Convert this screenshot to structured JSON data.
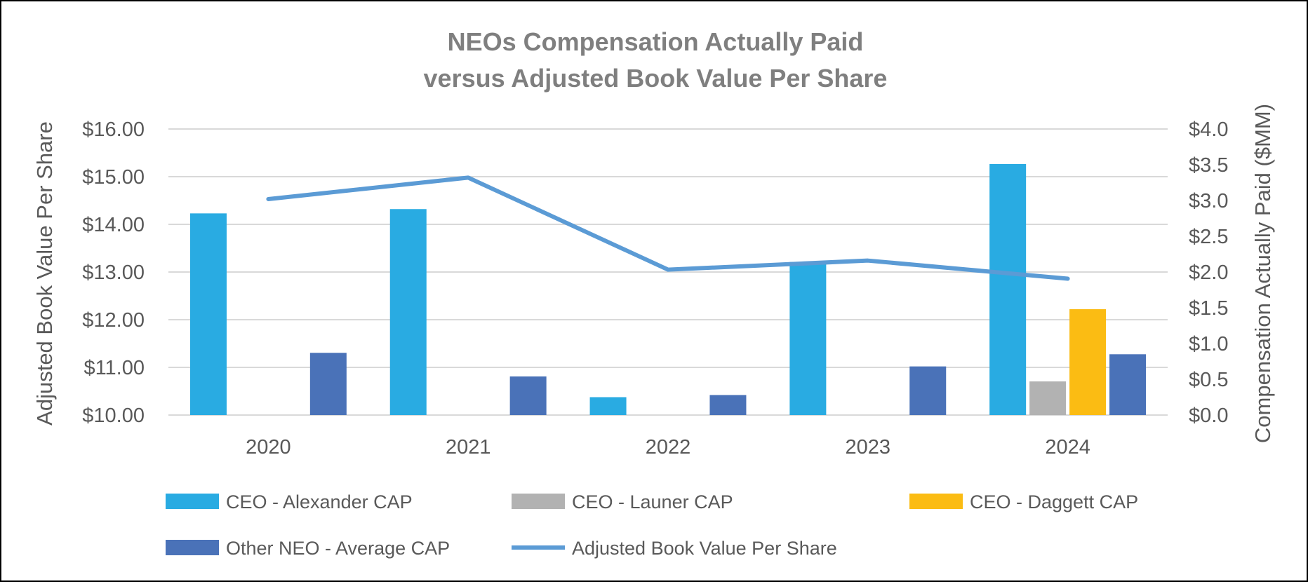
{
  "chart_data": {
    "type": "bar",
    "title": [
      "NEOs Compensation Actually Paid",
      "versus Adjusted Book Value Per Share"
    ],
    "categories": [
      "2020",
      "2021",
      "2022",
      "2023",
      "2024"
    ],
    "y_left": {
      "label": "Adjusted Book Value Per Share",
      "range": [
        10,
        16
      ],
      "ticks": [
        "$10.00",
        "$11.00",
        "$12.00",
        "$13.00",
        "$14.00",
        "$15.00",
        "$16.00"
      ]
    },
    "y_right": {
      "label": "Compensation Actually Paid ($MM)",
      "range": [
        0,
        4
      ],
      "ticks": [
        "$0.0",
        "$0.5",
        "$1.0",
        "$1.5",
        "$2.0",
        "$2.5",
        "$3.0",
        "$3.5",
        "$4.0"
      ]
    },
    "series": [
      {
        "name": "CEO - Alexander CAP",
        "kind": "bar",
        "axis": "right",
        "color": "#29abe2",
        "values": [
          2.82,
          2.88,
          0.25,
          2.14,
          3.51
        ]
      },
      {
        "name": "CEO - Launer CAP",
        "kind": "bar",
        "axis": "right",
        "color": "#b2b2b2",
        "values": [
          null,
          null,
          null,
          null,
          0.47
        ]
      },
      {
        "name": "CEO - Daggett CAP",
        "kind": "bar",
        "axis": "right",
        "color": "#fbbc13",
        "values": [
          null,
          null,
          null,
          null,
          1.48
        ]
      },
      {
        "name": "Other NEO - Average CAP",
        "kind": "bar",
        "axis": "right",
        "color": "#4a72b8",
        "values": [
          0.87,
          0.54,
          0.28,
          0.68,
          0.85
        ]
      },
      {
        "name": "Adjusted Book Value Per Share",
        "kind": "line",
        "axis": "left",
        "color": "#5b9bd5",
        "values": [
          14.53,
          14.98,
          13.05,
          13.24,
          12.86
        ]
      }
    ],
    "grid": true,
    "legend_position": "bottom"
  }
}
